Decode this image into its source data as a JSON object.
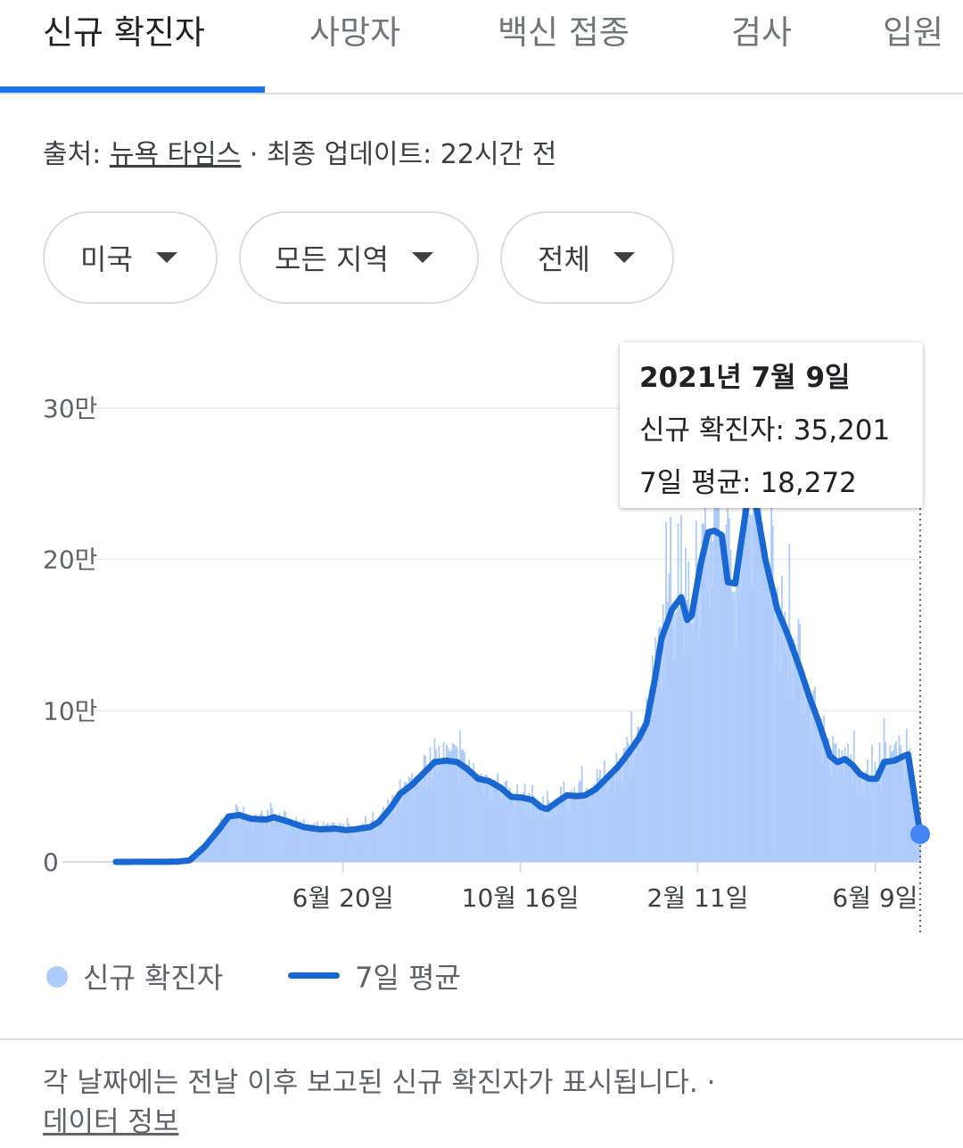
{
  "tabs": [
    {
      "label": "신규 확진자",
      "active": true
    },
    {
      "label": "사망자"
    },
    {
      "label": "백신 접종"
    },
    {
      "label": "검사"
    },
    {
      "label": "입원"
    }
  ],
  "source": {
    "prefix": "출처: ",
    "link": "뉴욕 타임스",
    "suffix": " · 최종 업데이트: 22시간 전"
  },
  "filters": {
    "country": "미국",
    "region": "모든 지역",
    "period": "전체"
  },
  "colors": {
    "accent": "#1a73e8",
    "line": "#1967d2",
    "bars": "#aecbfa"
  },
  "tooltip": {
    "date": "2021년 7월 9일",
    "new_cases_label": "신규 확진자: ",
    "new_cases": "35,201",
    "avg_label": "7일 평균: ",
    "avg": "18,272"
  },
  "legend": {
    "bars": "신규 확진자",
    "line": "7일 평균"
  },
  "footnote": {
    "text": "각 날짜에는 전날 이후 보고된 신규 확진자가 표시됩니다. ",
    "separator": "·",
    "link": "데이터 정보"
  },
  "chart_data": {
    "type": "bar",
    "x_range": [
      "2020-01-21",
      "2021-07-09"
    ],
    "x_ticks": [
      "6월 20일",
      "10월 16일",
      "2월 11일",
      "6월 9일"
    ],
    "y_ticks": [
      "0",
      "10만",
      "20만",
      "30만"
    ],
    "ylim": [
      0,
      300000
    ],
    "grid": true,
    "legend_position": "bottom",
    "series": [
      {
        "name": "신규 확진자",
        "type": "bar"
      },
      {
        "name": "7일 평균",
        "type": "line"
      }
    ],
    "seven_day_average": [
      [
        "2020-01-21",
        0
      ],
      [
        "2020-03-01",
        100
      ],
      [
        "2020-03-10",
        1000
      ],
      [
        "2020-03-20",
        10000
      ],
      [
        "2020-03-30",
        22000
      ],
      [
        "2020-04-05",
        30000
      ],
      [
        "2020-04-12",
        31000
      ],
      [
        "2020-04-20",
        28500
      ],
      [
        "2020-04-30",
        28000
      ],
      [
        "2020-05-05",
        29500
      ],
      [
        "2020-05-15",
        26500
      ],
      [
        "2020-05-25",
        23000
      ],
      [
        "2020-06-05",
        21500
      ],
      [
        "2020-06-15",
        22000
      ],
      [
        "2020-06-22",
        21000
      ],
      [
        "2020-06-28",
        21500
      ],
      [
        "2020-07-08",
        23000
      ],
      [
        "2020-07-14",
        26500
      ],
      [
        "2020-07-22",
        36000
      ],
      [
        "2020-07-28",
        45000
      ],
      [
        "2020-08-05",
        51000
      ],
      [
        "2020-08-12",
        58000
      ],
      [
        "2020-08-20",
        66000
      ],
      [
        "2020-08-28",
        67000
      ],
      [
        "2020-09-04",
        66000
      ],
      [
        "2020-09-10",
        62000
      ],
      [
        "2020-09-18",
        55000
      ],
      [
        "2020-09-25",
        53500
      ],
      [
        "2020-10-03",
        49000
      ],
      [
        "2020-10-10",
        43000
      ],
      [
        "2020-10-17",
        42500
      ],
      [
        "2020-10-24",
        41000
      ],
      [
        "2020-10-30",
        36000
      ],
      [
        "2020-11-03",
        35000
      ],
      [
        "2020-11-10",
        40000
      ],
      [
        "2020-11-16",
        44000
      ],
      [
        "2020-11-22",
        43500
      ],
      [
        "2020-11-28",
        44000
      ],
      [
        "2020-12-05",
        48000
      ],
      [
        "2020-12-12",
        55000
      ],
      [
        "2020-12-20",
        63000
      ],
      [
        "2020-12-27",
        72000
      ],
      [
        "2021-01-03",
        82000
      ],
      [
        "2021-01-08",
        92000
      ],
      [
        "2021-01-13",
        118000
      ],
      [
        "2021-01-18",
        148000
      ],
      [
        "2021-01-25",
        167000
      ],
      [
        "2021-01-31",
        175000
      ],
      [
        "2021-02-04",
        160000
      ],
      [
        "2021-02-07",
        163000
      ],
      [
        "2021-02-13",
        197000
      ],
      [
        "2021-02-18",
        218000
      ],
      [
        "2021-02-22",
        219000
      ],
      [
        "2021-02-27",
        216000
      ],
      [
        "2021-03-03",
        185000
      ],
      [
        "2021-03-08",
        184000
      ],
      [
        "2021-03-12",
        212000
      ],
      [
        "2021-03-16",
        238000
      ],
      [
        "2021-03-22",
        235000
      ],
      [
        "2021-03-28",
        200000
      ],
      [
        "2021-04-05",
        167000
      ],
      [
        "2021-04-12",
        150000
      ],
      [
        "2021-04-20",
        128000
      ],
      [
        "2021-04-26",
        110000
      ],
      [
        "2021-05-03",
        91000
      ],
      [
        "2021-05-10",
        70000
      ],
      [
        "2021-05-15",
        66000
      ],
      [
        "2021-05-20",
        68000
      ],
      [
        "2021-05-25",
        64000
      ],
      [
        "2021-05-30",
        58000
      ],
      [
        "2021-06-05",
        55000
      ],
      [
        "2021-06-10",
        55000
      ],
      [
        "2021-06-15",
        66000
      ],
      [
        "2021-06-22",
        67000
      ],
      [
        "2021-06-28",
        70000
      ],
      [
        "2021-07-01",
        71000
      ],
      [
        "2021-07-09",
        18272
      ]
    ],
    "tooltip_point": {
      "date": "2021-07-09",
      "new_cases": 35201,
      "avg": 18272
    }
  }
}
